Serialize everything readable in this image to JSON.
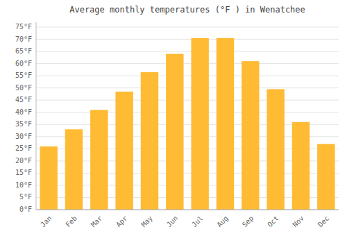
{
  "chart_data": {
    "type": "bar",
    "title": "Average monthly temperatures (°F ) in Wenatchee",
    "categories": [
      "Jan",
      "Feb",
      "Mar",
      "Apr",
      "May",
      "Jun",
      "Jul",
      "Aug",
      "Sep",
      "Oct",
      "Nov",
      "Dec"
    ],
    "values": [
      26,
      33,
      41,
      48.5,
      56.5,
      64,
      70.5,
      70.5,
      61,
      49.5,
      36,
      27
    ],
    "color": "#FFBB33",
    "ylim": [
      0,
      77
    ],
    "yticks": [
      {
        "value": 0,
        "label": "0°F"
      },
      {
        "value": 5,
        "label": "5°F"
      },
      {
        "value": 10,
        "label": "10°F"
      },
      {
        "value": 15,
        "label": "15°F"
      },
      {
        "value": 20,
        "label": "20°F"
      },
      {
        "value": 25,
        "label": "25°F"
      },
      {
        "value": 30,
        "label": "30°F"
      },
      {
        "value": 35,
        "label": "35°F"
      },
      {
        "value": 40,
        "label": "40°F"
      },
      {
        "value": 45,
        "label": "45°F"
      },
      {
        "value": 50,
        "label": "50°F"
      },
      {
        "value": 55,
        "label": "55°F"
      },
      {
        "value": 60,
        "label": "60°F"
      },
      {
        "value": 65,
        "label": "65°F"
      },
      {
        "value": 70,
        "label": "70°F"
      },
      {
        "value": 75,
        "label": "75°F"
      }
    ],
    "grid": true
  }
}
